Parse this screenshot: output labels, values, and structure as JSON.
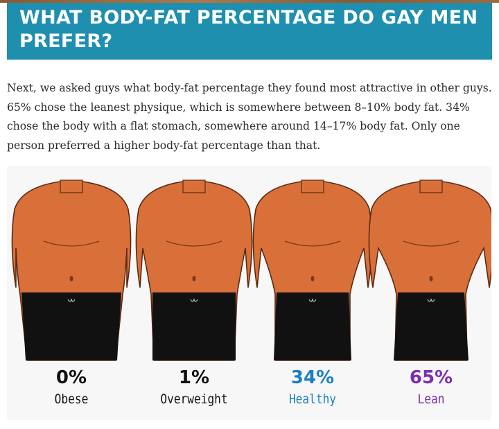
{
  "heading": "What body-fat percentage do gay men prefer?",
  "paragraph": "Next, we asked guys what body-fat percentage they found most attractive in other guys. 65% chose the leanest physique, which is somewhere between 8–10% body fat. 34% chose the body with a flat stomach, somewhere around 14–17% body fat. Only one person preferred a higher body-fat percentage than that.",
  "figure": {
    "bodies": [
      {
        "percent": "0%",
        "label": "Obese",
        "color": "#111111",
        "build": "obese"
      },
      {
        "percent": "1%",
        "label": "Overweight",
        "color": "#111111",
        "build": "overweight"
      },
      {
        "percent": "34%",
        "label": "Healthy",
        "color": "#1a7fc2",
        "build": "healthy"
      },
      {
        "percent": "65%",
        "label": "Lean",
        "color": "#7a2fb3",
        "build": "lean"
      }
    ],
    "skin_color": "#d9703a",
    "shorts_color": "#111111"
  }
}
